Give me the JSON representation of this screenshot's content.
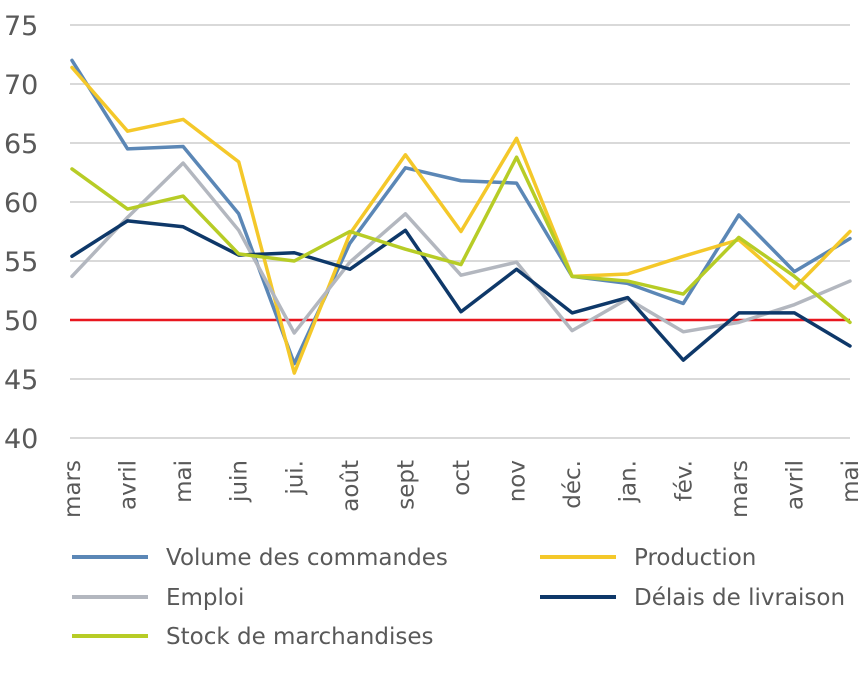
{
  "chart_data": {
    "type": "line",
    "categories": [
      "mars",
      "avril",
      "mai",
      "juin",
      "jui.",
      "août",
      "sept",
      "oct",
      "nov",
      "déc.",
      "jan.",
      "fév.",
      "mars",
      "avril",
      "mai"
    ],
    "ylim": [
      40,
      75
    ],
    "yticks": [
      40,
      45,
      50,
      55,
      60,
      65,
      70,
      75
    ],
    "grid": true,
    "legend_position": "bottom",
    "reference_line": {
      "value": 50,
      "color": "#e8171f"
    },
    "series": [
      {
        "name": "Volume des commandes",
        "color": "#5b87b6",
        "values": [
          72.0,
          64.5,
          64.7,
          59.0,
          46.3,
          56.5,
          62.9,
          61.8,
          61.6,
          53.7,
          53.1,
          51.4,
          58.9,
          54.1,
          56.9
        ]
      },
      {
        "name": "Production",
        "color": "#f4c82a",
        "values": [
          71.4,
          66.0,
          67.0,
          63.4,
          45.5,
          57.3,
          64.0,
          57.5,
          65.4,
          53.7,
          53.9,
          55.4,
          56.8,
          52.7,
          57.5
        ]
      },
      {
        "name": "Emploi",
        "color": "#b3b7bf",
        "values": [
          53.7,
          58.7,
          63.3,
          57.6,
          48.9,
          54.9,
          59.0,
          53.8,
          54.9,
          49.1,
          51.8,
          49.0,
          49.8,
          51.3,
          53.3
        ]
      },
      {
        "name": "Délais de livraison",
        "color": "#0e3869",
        "values": [
          55.4,
          58.4,
          57.9,
          55.5,
          55.7,
          54.3,
          57.6,
          50.7,
          54.3,
          50.6,
          51.9,
          46.6,
          50.6,
          50.6,
          47.8
        ]
      },
      {
        "name": "Stock de marchandises",
        "color": "#b7cc26",
        "values": [
          62.8,
          59.4,
          60.5,
          55.6,
          55.0,
          57.5,
          56.0,
          54.7,
          63.8,
          53.7,
          53.3,
          52.2,
          57.0,
          53.7,
          49.8
        ]
      }
    ]
  }
}
